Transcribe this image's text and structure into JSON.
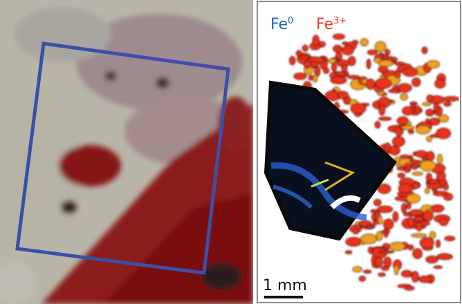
{
  "legend": {
    "fe0": {
      "base": "Fe",
      "sup": "0"
    },
    "fe3": {
      "base": "Fe",
      "sup": "3+"
    }
  },
  "scale_bar": {
    "label": "1 mm"
  }
}
